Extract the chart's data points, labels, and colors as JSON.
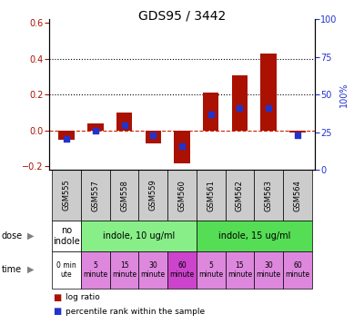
{
  "title": "GDS95 / 3442",
  "samples": [
    "GSM555",
    "GSM557",
    "GSM558",
    "GSM559",
    "GSM560",
    "GSM561",
    "GSM562",
    "GSM563",
    "GSM564"
  ],
  "log_ratio": [
    -0.05,
    0.04,
    0.1,
    -0.07,
    -0.18,
    0.21,
    0.31,
    0.43,
    -0.01
  ],
  "percentile_pct": [
    21,
    26,
    30,
    23,
    16,
    37,
    41,
    41,
    23
  ],
  "bar_color": "#aa1100",
  "dot_color": "#2233cc",
  "ylim_left": [
    -0.22,
    0.62
  ],
  "ylim_right": [
    0,
    100
  ],
  "yticks_left": [
    -0.2,
    0.0,
    0.2,
    0.4,
    0.6
  ],
  "yticks_right": [
    0,
    25,
    50,
    75,
    100
  ],
  "hlines_dotted": [
    0.2,
    0.4
  ],
  "hline_zero_color": "#cc2200",
  "sample_bg_color": "#cccccc",
  "dose_cells": [
    {
      "label": "no\nindole",
      "color": "#ffffff",
      "span": 1
    },
    {
      "label": "indole, 10 ug/ml",
      "color": "#88ee88",
      "span": 4
    },
    {
      "label": "indole, 15 ug/ml",
      "color": "#55dd55",
      "span": 4
    }
  ],
  "time_cells": [
    {
      "label": "0 min\nute",
      "color": "#ffffff",
      "span": 1
    },
    {
      "label": "5\nminute",
      "color": "#dd88dd",
      "span": 1
    },
    {
      "label": "15\nminute",
      "color": "#dd88dd",
      "span": 1
    },
    {
      "label": "30\nminute",
      "color": "#dd88dd",
      "span": 1
    },
    {
      "label": "60\nminute",
      "color": "#cc44cc",
      "span": 1
    },
    {
      "label": "5\nminute",
      "color": "#dd88dd",
      "span": 1
    },
    {
      "label": "15\nminute",
      "color": "#dd88dd",
      "span": 1
    },
    {
      "label": "30\nminute",
      "color": "#dd88dd",
      "span": 1
    },
    {
      "label": "60\nminute",
      "color": "#dd88dd",
      "span": 1
    }
  ],
  "legend_items": [
    {
      "color": "#aa1100",
      "label": "log ratio"
    },
    {
      "color": "#2233cc",
      "label": "percentile rank within the sample"
    }
  ],
  "dose_label": "dose",
  "time_label": "time",
  "right_ylabel_pct": "100%"
}
